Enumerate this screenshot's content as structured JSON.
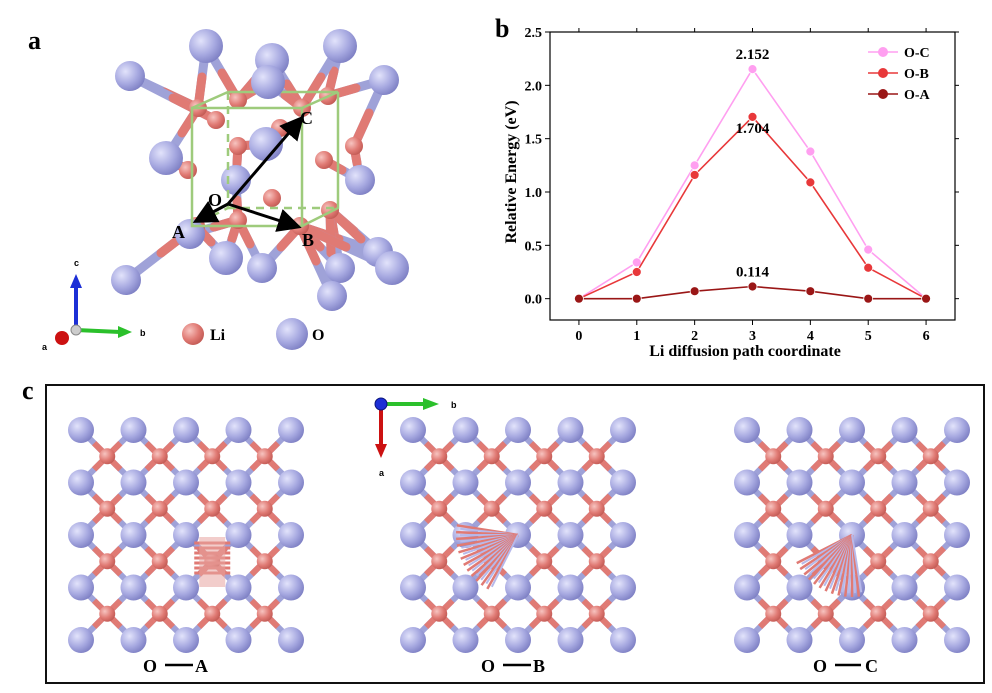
{
  "panels": {
    "a": {
      "letter": "a",
      "points": {
        "C": "C",
        "O": "O",
        "A": "A",
        "B": "B"
      },
      "axes": {
        "c": "c",
        "b": "b",
        "a": "a"
      },
      "legend": [
        {
          "label": "Li",
          "color": "#e88a84"
        },
        {
          "label": "O",
          "color": "#a9abe3"
        }
      ]
    },
    "b": {
      "letter": "b"
    },
    "c": {
      "letter": "c",
      "axes": {
        "b": "b",
        "a": "a"
      },
      "views": [
        {
          "label_left": "O",
          "label_right": "A"
        },
        {
          "label_left": "O",
          "label_right": "B"
        },
        {
          "label_left": "O",
          "label_right": "C"
        }
      ]
    }
  },
  "colors": {
    "li": "#e07a74",
    "o": "#a6a8e0",
    "bond": "#9fa2d8",
    "cell": "#9ecb7c",
    "oc": "#ff9ff0",
    "ob": "#e8383a",
    "oa": "#9a1616"
  },
  "chart_data": {
    "type": "line",
    "xlabel": "Li diffusion path coordinate",
    "ylabel": "Relative Energy (eV)",
    "xlim": [
      -0.5,
      6.5
    ],
    "ylim": [
      -0.2,
      2.5
    ],
    "xticks": [
      0,
      1,
      2,
      3,
      4,
      5,
      6
    ],
    "yticks": [
      0.0,
      0.5,
      1.0,
      1.5,
      2.0,
      2.5
    ],
    "x": [
      0,
      1,
      2,
      3,
      4,
      5,
      6
    ],
    "series": [
      {
        "name": "O-C",
        "values": [
          0.0,
          0.34,
          1.25,
          2.152,
          1.38,
          0.46,
          0.0
        ],
        "color": "#ff9ff0"
      },
      {
        "name": "O-B",
        "values": [
          0.0,
          0.25,
          1.16,
          1.704,
          1.09,
          0.29,
          0.0
        ],
        "color": "#e8383a"
      },
      {
        "name": "O-A",
        "values": [
          0.0,
          0.0,
          0.07,
          0.114,
          0.07,
          0.0,
          0.0
        ],
        "color": "#9a1616"
      }
    ],
    "annotations": [
      {
        "text": "2.152",
        "x": 3,
        "y": 2.152
      },
      {
        "text": "1.704",
        "x": 3,
        "y": 1.704
      },
      {
        "text": "0.114",
        "x": 3,
        "y": 0.114
      }
    ],
    "legend_position": "top-right",
    "grid": false
  }
}
